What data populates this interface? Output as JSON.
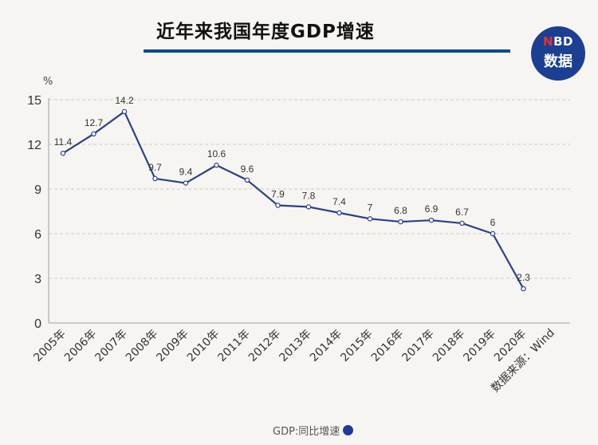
{
  "header": {
    "title": "近年来我国年度GDP增速",
    "logo_top": "NBD",
    "logo_top_accent": "N",
    "logo_top_rest": "BD",
    "logo_bottom": "数据"
  },
  "colors": {
    "line": "#2a3f8f",
    "title_rule": "#0d4a8c",
    "logo_bg": "#1b3f93",
    "logo_accent": "#e8322f",
    "grid": "#cccccc",
    "background": "#f7f5f1"
  },
  "legend": {
    "label": "GDP:同比增速"
  },
  "source": "数据来源：Wind",
  "chart_data": {
    "type": "line",
    "title": "近年来我国年度GDP增速",
    "xlabel": "",
    "ylabel": "%",
    "ylim": [
      0,
      15
    ],
    "yticks": [
      0,
      3,
      6,
      9,
      12,
      15
    ],
    "grid": true,
    "legend_position": "bottom",
    "categories": [
      "2005年",
      "2006年",
      "2007年",
      "2008年",
      "2009年",
      "2010年",
      "2011年",
      "2012年",
      "2013年",
      "2014年",
      "2015年",
      "2016年",
      "2017年",
      "2018年",
      "2019年",
      "2020年"
    ],
    "series": [
      {
        "name": "GDP:同比增速",
        "values": [
          11.4,
          12.7,
          14.2,
          9.7,
          9.4,
          10.6,
          9.6,
          7.9,
          7.8,
          7.4,
          7,
          6.8,
          6.9,
          6.7,
          6,
          2.3
        ],
        "labels": [
          "11.4",
          "12.7",
          "14.2",
          "9.7",
          "9.4",
          "10.6",
          "9.6",
          "7.9",
          "7.8",
          "7.4",
          "7",
          "6.8",
          "6.9",
          "6.7",
          "6",
          "2.3"
        ]
      }
    ],
    "annotation": "数据来源：Wind"
  }
}
